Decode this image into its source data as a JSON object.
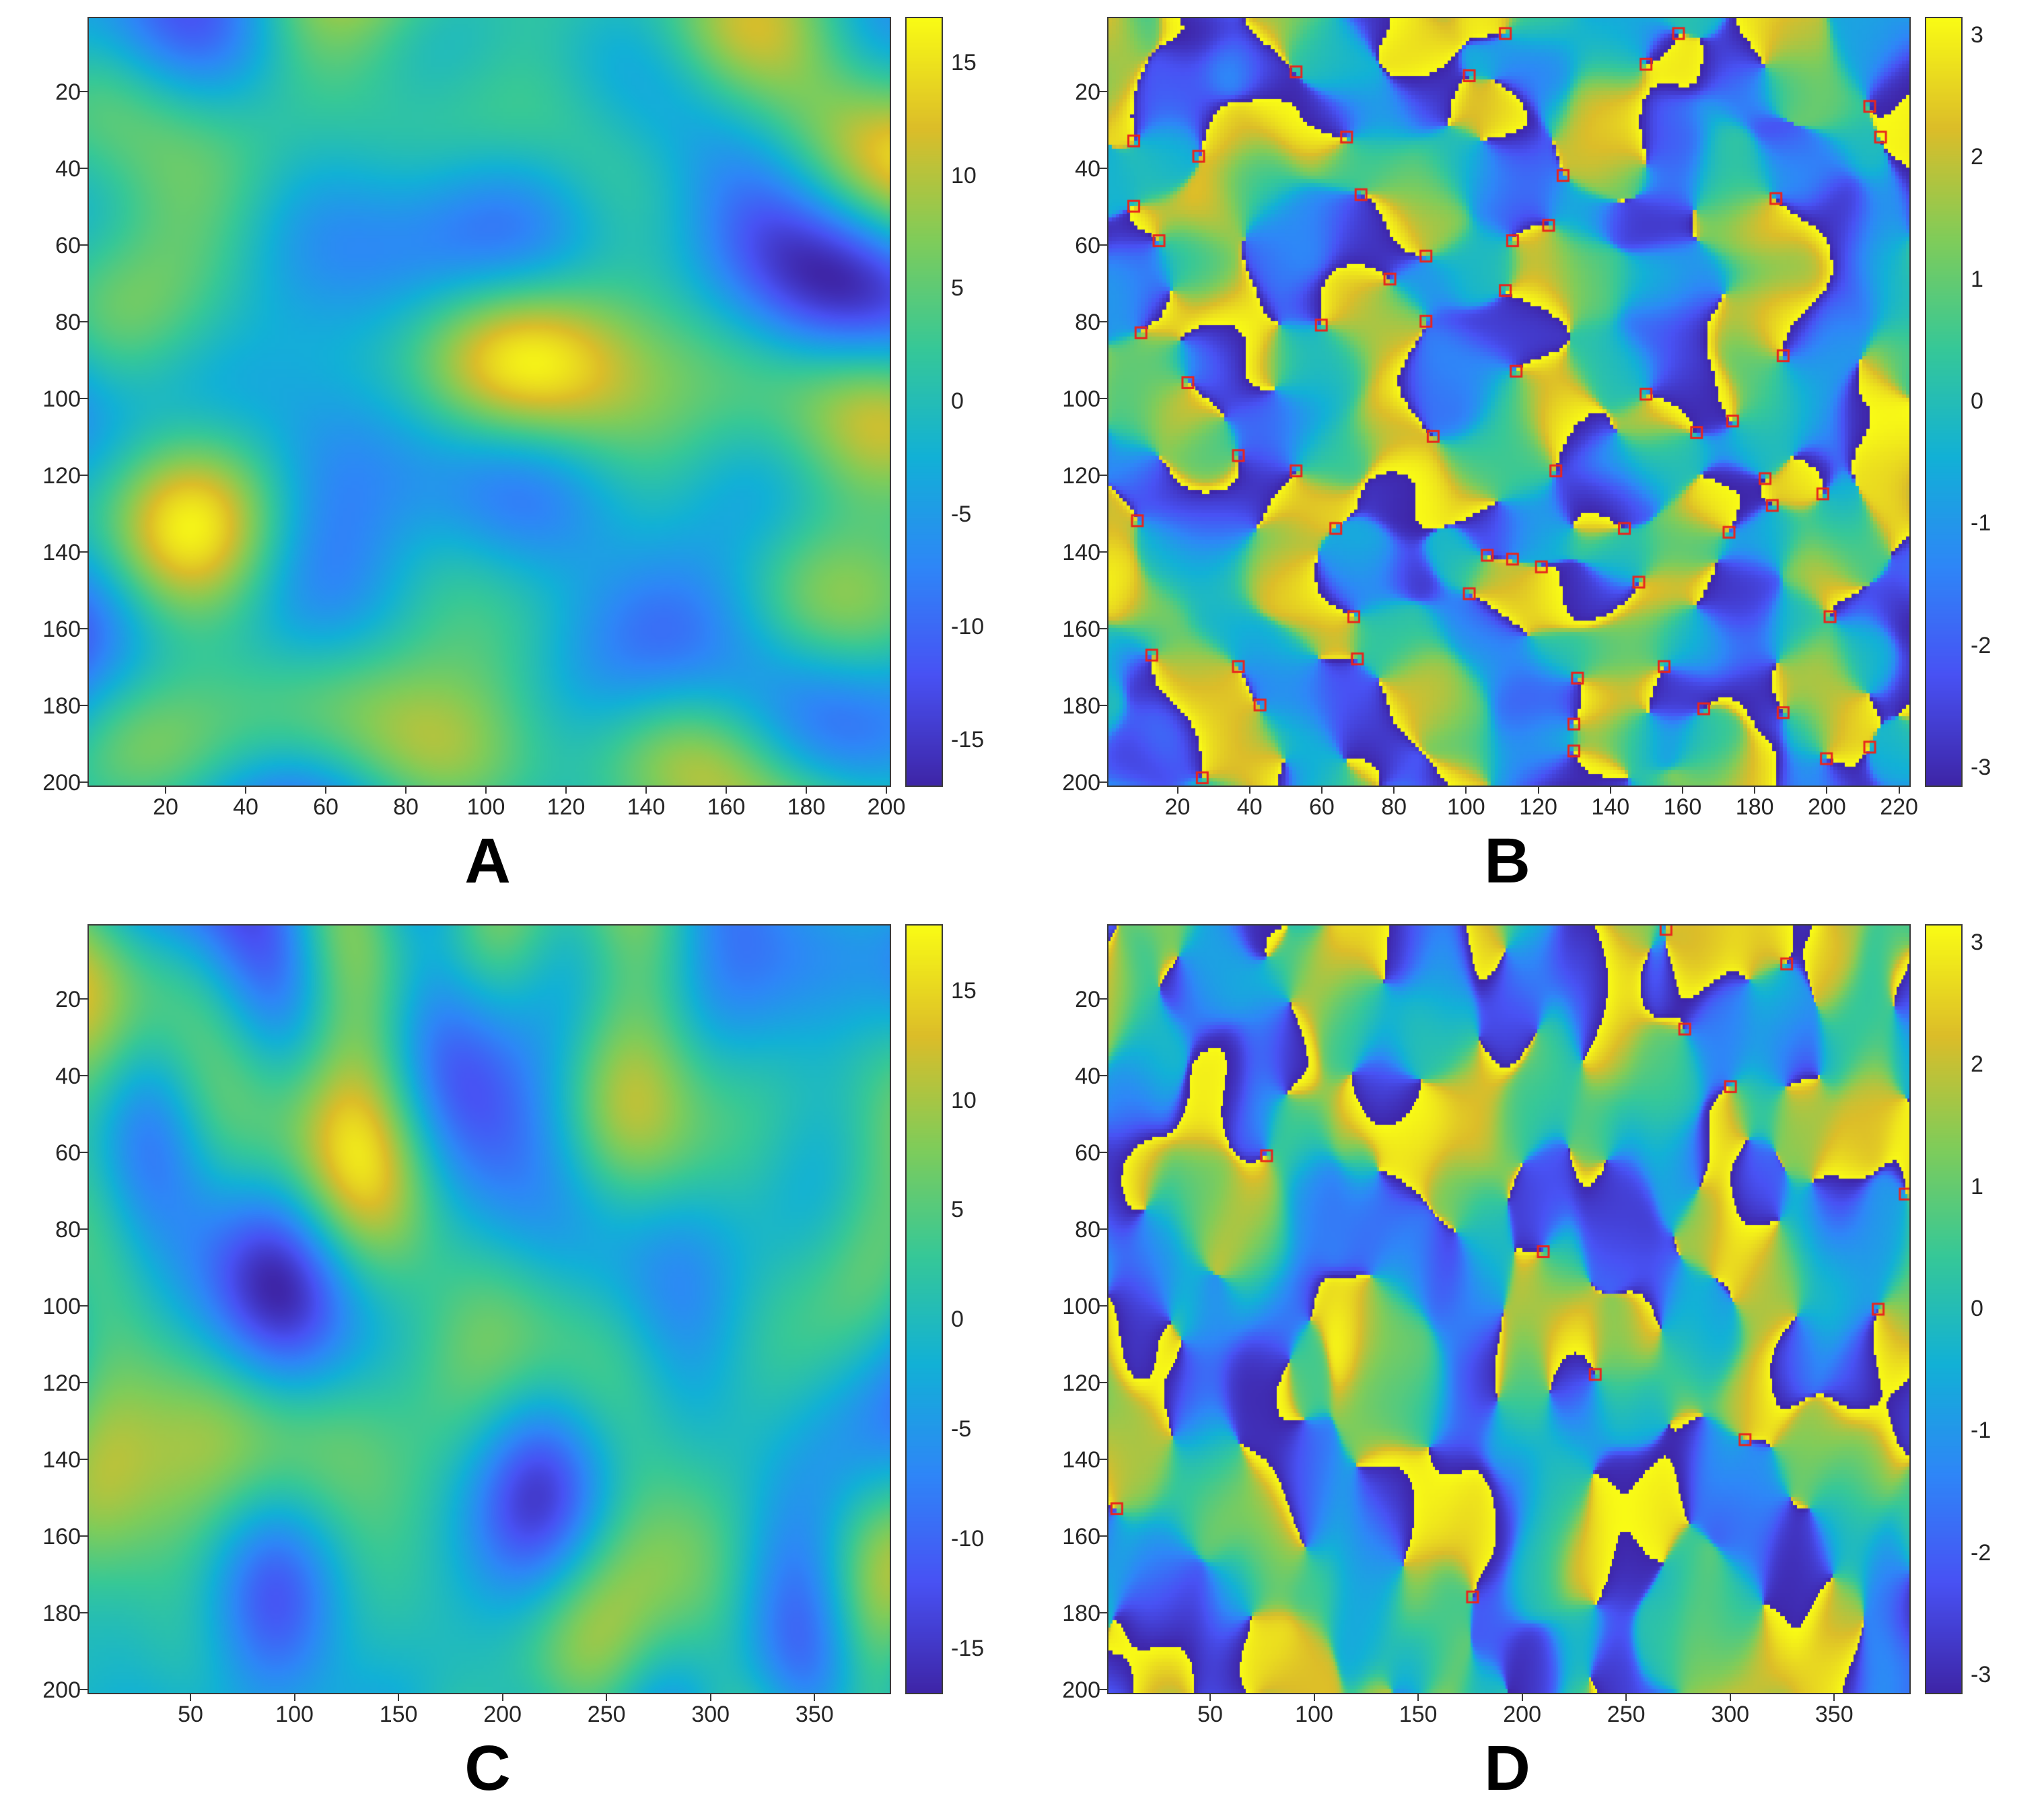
{
  "figure": {
    "background": "#ffffff"
  },
  "colormap": {
    "name": "parula",
    "stops": [
      "#3e26a8",
      "#4852f4",
      "#2e87f7",
      "#12b1d6",
      "#37c897",
      "#81cc59",
      "#dcbd29",
      "#f9fb15"
    ]
  },
  "marker_style": {
    "color": "#e8251d",
    "shape": "open-square"
  },
  "chart_data": [
    {
      "id": "A",
      "label": "A",
      "type": "heatmap",
      "x_range": [
        1,
        200
      ],
      "y_range": [
        1,
        200
      ],
      "x_ticks": [
        20,
        40,
        60,
        80,
        100,
        120,
        140,
        160,
        180,
        200
      ],
      "y_ticks": [
        20,
        40,
        60,
        80,
        100,
        120,
        140,
        160,
        180,
        200
      ],
      "value_range": [
        -17,
        17
      ],
      "colorbar_ticks": [
        15,
        10,
        5,
        0,
        -5,
        -10,
        -15
      ],
      "field": {
        "kind": "random-sum-cosines",
        "seed": 101,
        "modes": 45,
        "lambda_min": 42,
        "lambda_max": 120,
        "amplitude": 17
      },
      "markers": {
        "enabled": false
      }
    },
    {
      "id": "B",
      "label": "B",
      "type": "phase",
      "x_range": [
        1,
        222
      ],
      "y_range": [
        1,
        200
      ],
      "x_ticks": [
        20,
        40,
        60,
        80,
        100,
        120,
        140,
        160,
        180,
        200,
        220
      ],
      "y_ticks": [
        20,
        40,
        60,
        80,
        100,
        120,
        140,
        160,
        180,
        200
      ],
      "value_range": [
        -3.1416,
        3.1416
      ],
      "colorbar_ticks": [
        3,
        2,
        1,
        0,
        -1,
        -2,
        -3
      ],
      "field": {
        "kind": "wrapped-phase",
        "seed_u": 201,
        "seed_v": 202,
        "modes": 45,
        "lambda_min": 22,
        "lambda_max": 60
      },
      "markers": {
        "enabled": true,
        "color": "#e8251d",
        "size": 16,
        "max": 60
      }
    },
    {
      "id": "C",
      "label": "C",
      "type": "heatmap",
      "x_range": [
        1,
        385
      ],
      "y_range": [
        1,
        200
      ],
      "x_ticks": [
        50,
        100,
        150,
        200,
        250,
        300,
        350
      ],
      "y_ticks": [
        20,
        40,
        60,
        80,
        100,
        120,
        140,
        160,
        180,
        200
      ],
      "value_range": [
        -17,
        18
      ],
      "colorbar_ticks": [
        15,
        10,
        5,
        0,
        -5,
        -10,
        -15
      ],
      "field": {
        "kind": "random-sum-cosines",
        "seed": 301,
        "modes": 45,
        "lambda_min": 55,
        "lambda_max": 150,
        "amplitude": 17
      },
      "markers": {
        "enabled": false
      }
    },
    {
      "id": "D",
      "label": "D",
      "type": "phase",
      "x_range": [
        1,
        385
      ],
      "y_range": [
        1,
        200
      ],
      "x_ticks": [
        50,
        100,
        150,
        200,
        250,
        300,
        350
      ],
      "y_ticks": [
        20,
        40,
        60,
        80,
        100,
        120,
        140,
        160,
        180,
        200
      ],
      "value_range": [
        -3.1416,
        3.1416
      ],
      "colorbar_ticks": [
        3,
        2,
        1,
        0,
        -1,
        -2,
        -3
      ],
      "field": {
        "kind": "wrapped-phase",
        "seed_u": 401,
        "seed_v": 402,
        "modes": 45,
        "lambda_min": 30,
        "lambda_max": 85
      },
      "markers": {
        "enabled": true,
        "color": "#e8251d",
        "size": 16,
        "max": 12
      }
    }
  ]
}
